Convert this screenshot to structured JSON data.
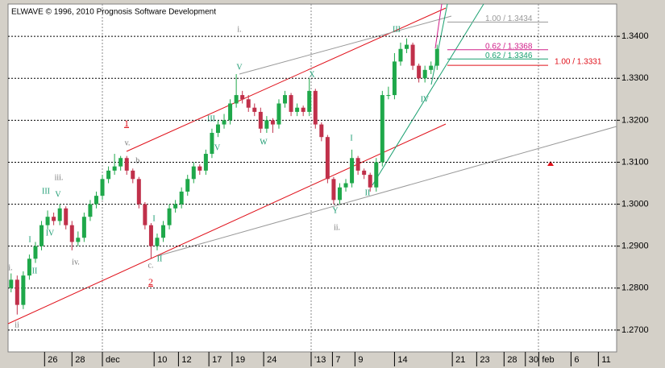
{
  "chart_data": {
    "type": "candlestick",
    "title": "ELWAVE © 1996, 2010 Prognosis Software Development",
    "up_color": "#1fa84a",
    "down_color": "#c0304a",
    "open": [
      1.28,
      1.282,
      1.276,
      1.283,
      1.287,
      1.29,
      1.295,
      1.297,
      1.296,
      1.299,
      1.295,
      1.291,
      1.292,
      1.297,
      1.3,
      1.302,
      1.306,
      1.308,
      1.309,
      1.311,
      1.308,
      1.306,
      1.3,
      1.295,
      1.29,
      1.292,
      1.295,
      1.299,
      1.3,
      1.303,
      1.306,
      1.309,
      1.308,
      1.312,
      1.317,
      1.319,
      1.32,
      1.324,
      1.326,
      1.325,
      1.323,
      1.322,
      1.318,
      1.32,
      1.319,
      1.324,
      1.326,
      1.322,
      1.323,
      1.322,
      1.327,
      1.319,
      1.316,
      1.306,
      1.301,
      1.304,
      1.305,
      1.311,
      1.308,
      1.307,
      1.304,
      1.31,
      1.326,
      1.326,
      1.334,
      1.337,
      1.338,
      1.333,
      1.33,
      1.332,
      1.333
    ],
    "high": [
      1.2835,
      1.283,
      1.284,
      1.288,
      1.291,
      1.296,
      1.2985,
      1.298,
      1.3,
      1.2995,
      1.296,
      1.2935,
      1.298,
      1.301,
      1.303,
      1.307,
      1.309,
      1.312,
      1.3115,
      1.3115,
      1.3085,
      1.3065,
      1.3005,
      1.2955,
      1.293,
      1.296,
      1.3,
      1.301,
      1.304,
      1.307,
      1.31,
      1.3095,
      1.313,
      1.318,
      1.32,
      1.3215,
      1.325,
      1.331,
      1.327,
      1.326,
      1.324,
      1.323,
      1.321,
      1.3205,
      1.325,
      1.327,
      1.3265,
      1.324,
      1.3235,
      1.33,
      1.3275,
      1.3195,
      1.3165,
      1.3065,
      1.305,
      1.306,
      1.313,
      1.3115,
      1.3085,
      1.3075,
      1.311,
      1.327,
      1.328,
      1.336,
      1.3385,
      1.3395,
      1.3385,
      1.3335,
      1.333,
      1.334,
      1.338
    ],
    "low": [
      1.279,
      1.2737,
      1.275,
      1.282,
      1.286,
      1.289,
      1.294,
      1.295,
      1.295,
      1.294,
      1.289,
      1.29,
      1.291,
      1.296,
      1.299,
      1.301,
      1.305,
      1.307,
      1.308,
      1.307,
      1.305,
      1.299,
      1.294,
      1.2871,
      1.289,
      1.291,
      1.294,
      1.298,
      1.299,
      1.302,
      1.305,
      1.307,
      1.307,
      1.311,
      1.316,
      1.318,
      1.319,
      1.323,
      1.324,
      1.322,
      1.321,
      1.317,
      1.317,
      1.317,
      1.318,
      1.323,
      1.321,
      1.321,
      1.321,
      1.321,
      1.318,
      1.315,
      1.305,
      1.3,
      1.3,
      1.303,
      1.304,
      1.307,
      1.306,
      1.303,
      1.303,
      1.309,
      1.325,
      1.325,
      1.333,
      1.336,
      1.332,
      1.329,
      1.329,
      1.331,
      1.332
    ],
    "close": [
      1.282,
      1.276,
      1.283,
      1.287,
      1.29,
      1.295,
      1.297,
      1.296,
      1.299,
      1.295,
      1.291,
      1.292,
      1.297,
      1.3,
      1.302,
      1.306,
      1.308,
      1.309,
      1.311,
      1.308,
      1.306,
      1.3,
      1.295,
      1.29,
      1.292,
      1.295,
      1.299,
      1.3,
      1.303,
      1.306,
      1.309,
      1.308,
      1.312,
      1.317,
      1.319,
      1.32,
      1.324,
      1.326,
      1.325,
      1.323,
      1.322,
      1.318,
      1.32,
      1.319,
      1.324,
      1.326,
      1.322,
      1.323,
      1.322,
      1.327,
      1.319,
      1.316,
      1.306,
      1.301,
      1.304,
      1.305,
      1.311,
      1.308,
      1.307,
      1.304,
      1.31,
      1.326,
      1.326,
      1.334,
      1.337,
      1.338,
      1.333,
      1.33,
      1.332,
      1.333,
      1.337
    ],
    "xlim": [
      0,
      100
    ],
    "xticks": [
      {
        "value": 6,
        "label": "26"
      },
      {
        "value": 10.5,
        "label": "28"
      },
      {
        "value": 15.5,
        "label": "dec"
      },
      {
        "value": 24,
        "label": "10"
      },
      {
        "value": 28,
        "label": "12"
      },
      {
        "value": 33,
        "label": "17"
      },
      {
        "value": 36.8,
        "label": "19"
      },
      {
        "value": 42,
        "label": "24"
      },
      {
        "value": 49.8,
        "label": "'13"
      },
      {
        "value": 53.3,
        "label": "7"
      },
      {
        "value": 57,
        "label": "9"
      },
      {
        "value": 63.5,
        "label": "14"
      },
      {
        "value": 73,
        "label": "21"
      },
      {
        "value": 77,
        "label": "23"
      },
      {
        "value": 81.5,
        "label": "28"
      },
      {
        "value": 85,
        "label": "30"
      },
      {
        "value": 87.2,
        "label": "feb"
      },
      {
        "value": 92.5,
        "label": "6"
      },
      {
        "value": 97,
        "label": "11"
      }
    ],
    "ylim": [
      1.2648,
      1.3477
    ],
    "yticks": [
      {
        "value": 1.27,
        "label": "1.2700"
      },
      {
        "value": 1.28,
        "label": "1.2800"
      },
      {
        "value": 1.29,
        "label": "1.2900"
      },
      {
        "value": 1.3,
        "label": "1.3000"
      },
      {
        "value": 1.31,
        "label": "1.3100"
      },
      {
        "value": 1.32,
        "label": "1.3200"
      },
      {
        "value": 1.33,
        "label": "1.3300"
      },
      {
        "value": 1.34,
        "label": "1.3400"
      }
    ],
    "grid": true,
    "levels": [
      {
        "value": 1.3434,
        "label": "1.00 / 1.3434",
        "color": "#999999"
      },
      {
        "value": 1.3368,
        "label": "0.62 / 1.3368",
        "color": "#d0208a"
      },
      {
        "value": 1.3346,
        "label": "0.62 / 1.3346",
        "color": "#1aa070"
      },
      {
        "value": 1.3331,
        "label": "1.00 / 1.3331",
        "color": "#e0101a"
      }
    ],
    "annotations": [
      "1",
      "2",
      "III",
      "V",
      "I",
      "IV",
      "II",
      "I",
      "II",
      "III",
      "IV",
      "V",
      "W",
      "X",
      "Y",
      "I",
      "II",
      "III",
      "IV",
      "i.",
      "ii",
      "iii.",
      "iv.",
      "v.",
      "b.",
      "c.",
      "i.",
      "ii."
    ]
  }
}
